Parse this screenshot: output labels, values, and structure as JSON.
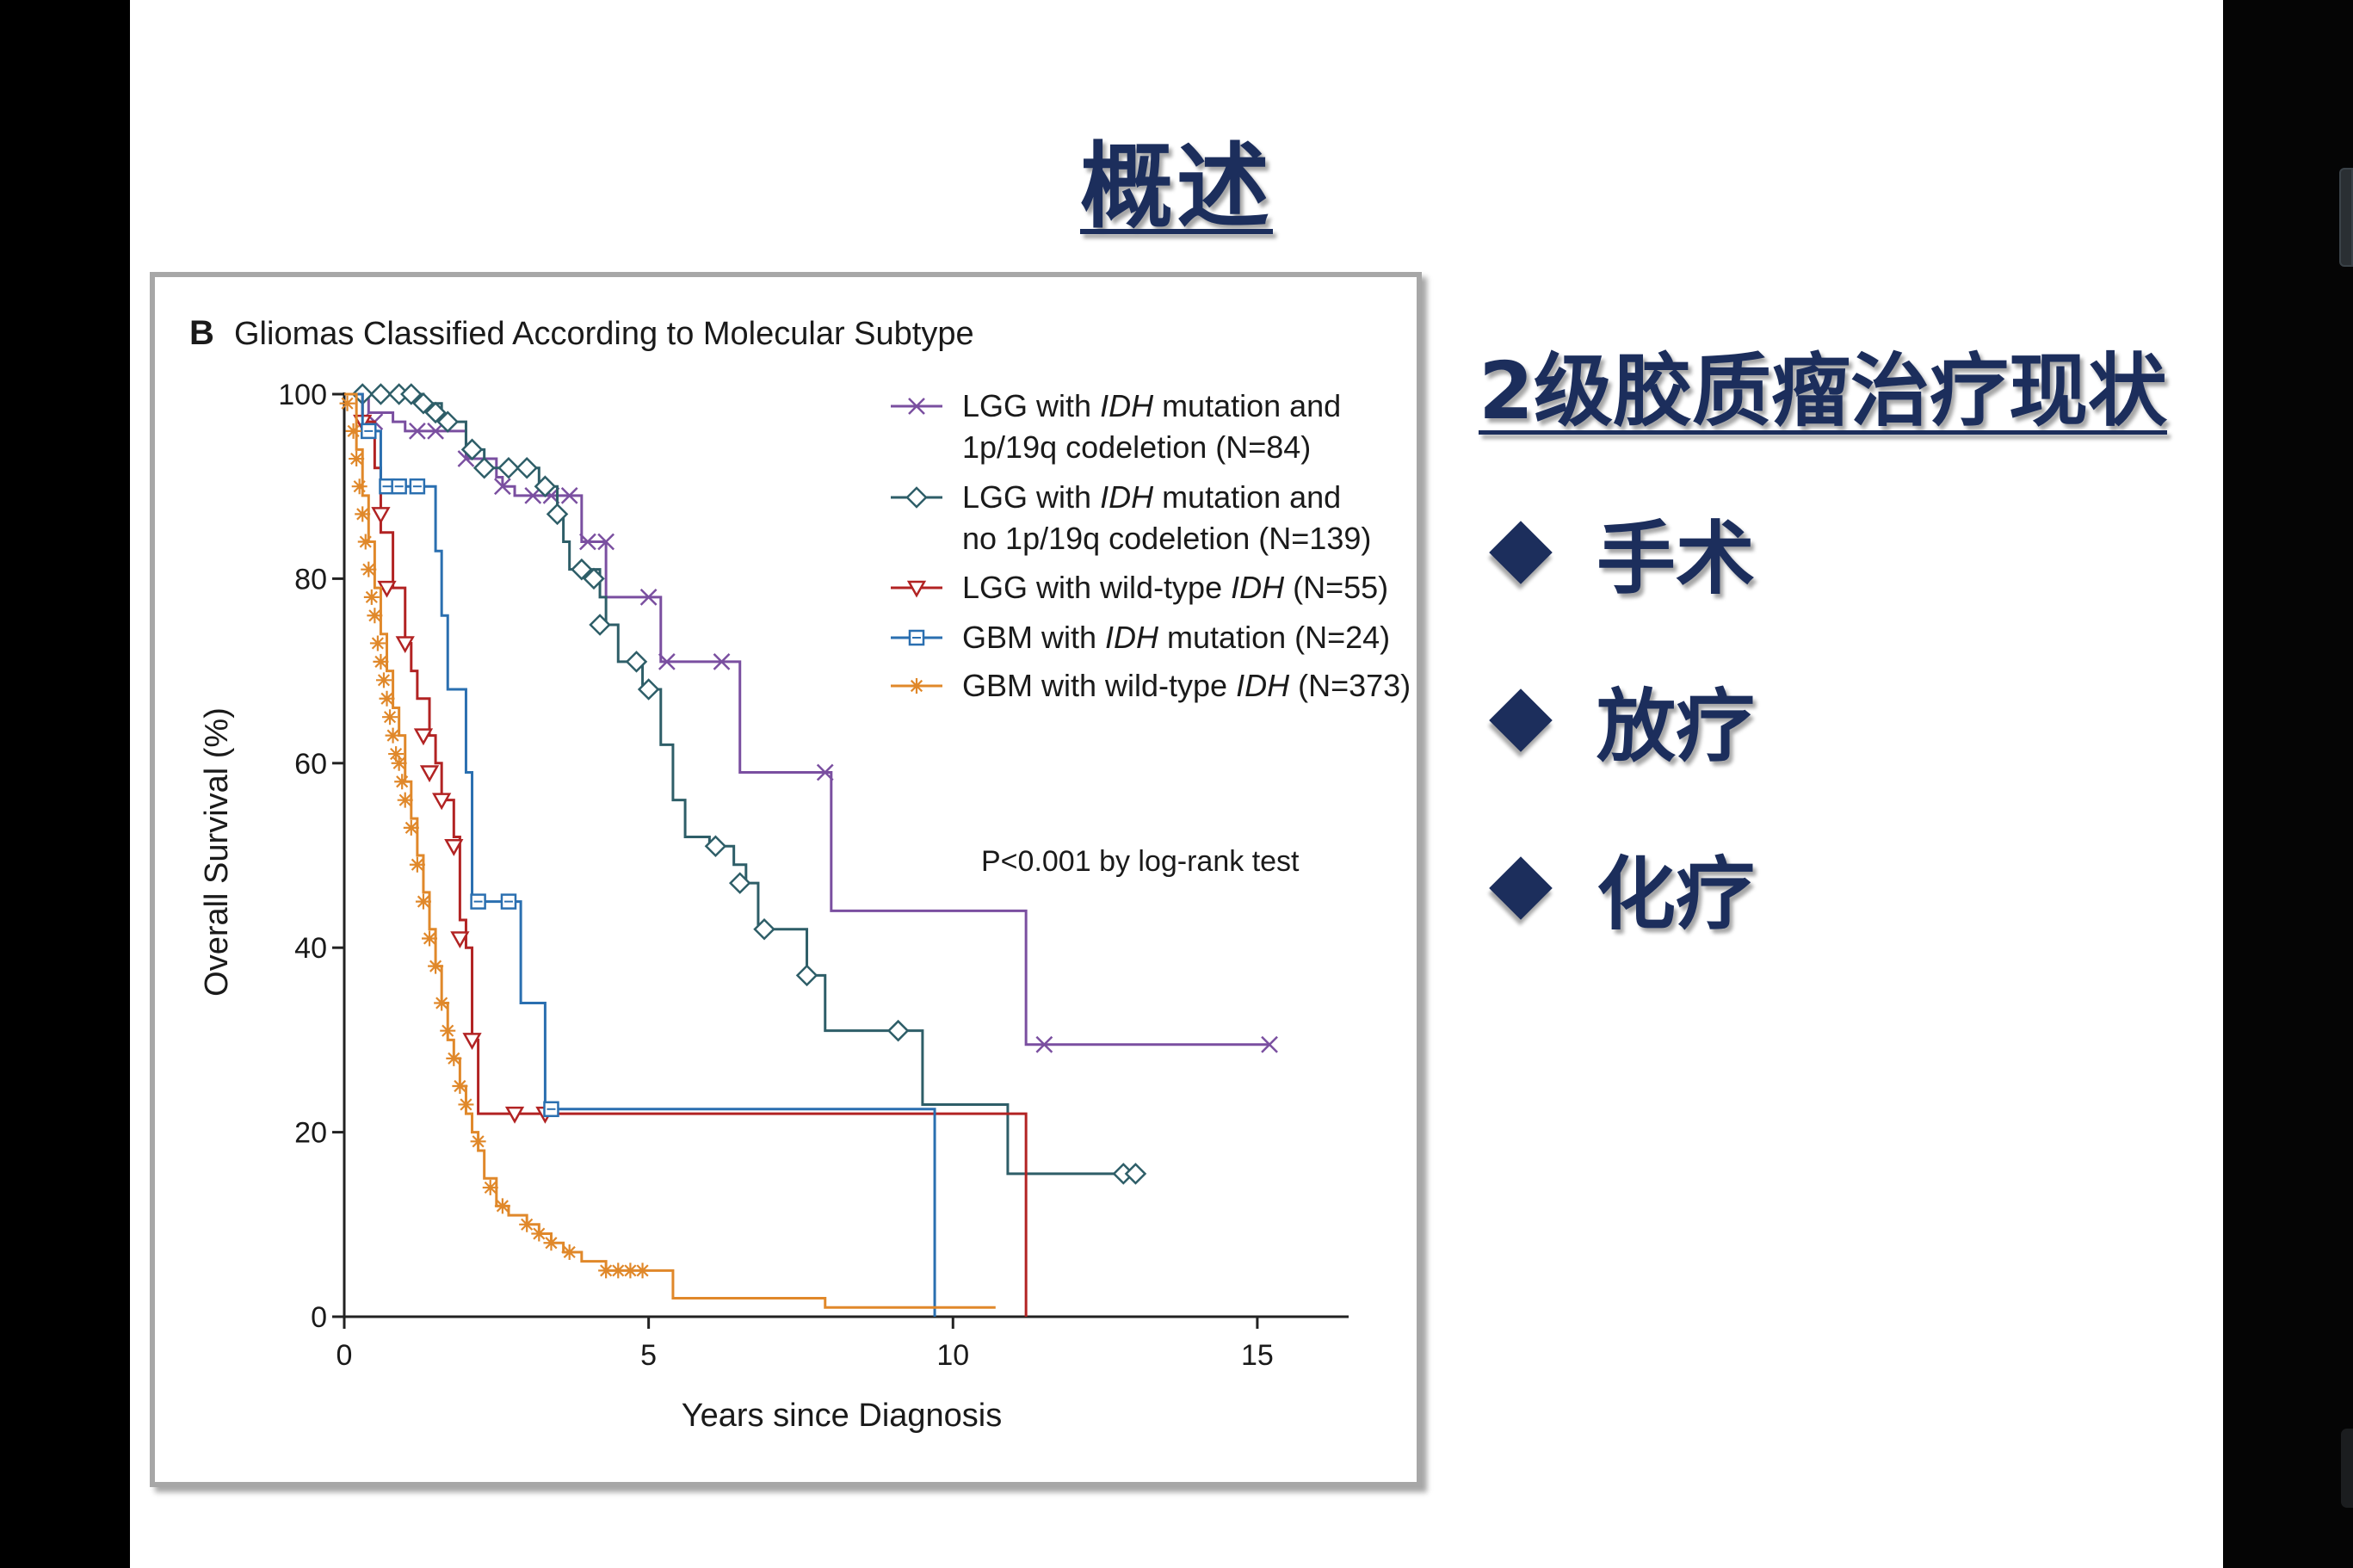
{
  "slide": {
    "title": "概述",
    "section_heading": "2级胶质瘤治疗现状",
    "bullets": [
      {
        "label": "手术",
        "icon": "diamond-bullet-icon"
      },
      {
        "label": "放疗",
        "icon": "diamond-bullet-icon"
      },
      {
        "label": "化疗",
        "icon": "diamond-bullet-icon"
      }
    ],
    "colors": {
      "heading": "#1c2e5c",
      "background": "#ffffff"
    }
  },
  "chart_data": {
    "type": "line",
    "panel_label": "B",
    "title": "Gliomas Classified According to Molecular Subtype",
    "xlabel": "Years since Diagnosis",
    "ylabel": "Overall Survival (%)",
    "xlim": [
      0,
      16.5
    ],
    "ylim": [
      0,
      100
    ],
    "xticks": [
      0,
      5,
      10,
      15
    ],
    "yticks": [
      0,
      20,
      40,
      60,
      80,
      100
    ],
    "annotation": "P<0.001 by log-rank test",
    "grid": false,
    "legend_position": "top-right",
    "series": [
      {
        "legend_parts": [
          "LGG with ",
          "IDH",
          " mutation and",
          "1p/19q codeletion (N=84)"
        ],
        "color": "#7a4fa0",
        "marker": "x",
        "steps": [
          [
            0,
            100
          ],
          [
            0.4,
            98
          ],
          [
            0.8,
            97
          ],
          [
            1.0,
            96
          ],
          [
            1.8,
            96
          ],
          [
            2.0,
            93
          ],
          [
            2.5,
            91
          ],
          [
            2.6,
            90
          ],
          [
            2.8,
            89
          ],
          [
            3.6,
            89
          ],
          [
            3.9,
            84
          ],
          [
            4.3,
            84
          ],
          [
            4.3,
            78
          ],
          [
            5.0,
            78
          ],
          [
            5.2,
            71
          ],
          [
            6.5,
            71
          ],
          [
            6.5,
            59
          ],
          [
            8.0,
            59
          ],
          [
            8.0,
            44
          ],
          [
            11.2,
            44
          ],
          [
            11.2,
            29.5
          ],
          [
            15.2,
            29.5
          ]
        ],
        "markers": [
          [
            0.5,
            97
          ],
          [
            1.2,
            96
          ],
          [
            1.5,
            96
          ],
          [
            2.0,
            93
          ],
          [
            2.6,
            90
          ],
          [
            3.1,
            89
          ],
          [
            3.4,
            89
          ],
          [
            3.7,
            89
          ],
          [
            4.0,
            84
          ],
          [
            4.3,
            84
          ],
          [
            5.0,
            78
          ],
          [
            5.3,
            71
          ],
          [
            6.2,
            71
          ],
          [
            7.9,
            59
          ],
          [
            11.5,
            29.5
          ],
          [
            15.2,
            29.5
          ]
        ]
      },
      {
        "legend_parts": [
          "LGG with ",
          "IDH",
          " mutation and",
          "no 1p/19q codeletion (N=139)"
        ],
        "color": "#2e5e68",
        "marker": "diamond",
        "steps": [
          [
            0,
            100
          ],
          [
            1.3,
            99
          ],
          [
            1.6,
            97
          ],
          [
            2.0,
            94
          ],
          [
            2.3,
            92
          ],
          [
            2.9,
            92
          ],
          [
            3.2,
            90
          ],
          [
            3.5,
            87
          ],
          [
            3.6,
            84
          ],
          [
            3.7,
            81
          ],
          [
            4.2,
            78
          ],
          [
            4.3,
            75
          ],
          [
            4.5,
            71
          ],
          [
            4.9,
            68
          ],
          [
            5.2,
            62
          ],
          [
            5.4,
            56
          ],
          [
            5.6,
            52
          ],
          [
            6.0,
            51
          ],
          [
            6.4,
            49
          ],
          [
            6.6,
            47
          ],
          [
            6.8,
            42
          ],
          [
            7.3,
            42
          ],
          [
            7.6,
            37
          ],
          [
            7.9,
            31
          ],
          [
            9.5,
            31
          ],
          [
            9.5,
            23
          ],
          [
            10.9,
            23
          ],
          [
            10.9,
            15.5
          ],
          [
            13.0,
            15.5
          ]
        ],
        "markers": [
          [
            0.3,
            100
          ],
          [
            0.6,
            100
          ],
          [
            0.9,
            100
          ],
          [
            1.1,
            100
          ],
          [
            1.3,
            99
          ],
          [
            1.5,
            98
          ],
          [
            1.7,
            97
          ],
          [
            2.1,
            94
          ],
          [
            2.3,
            92
          ],
          [
            2.7,
            92
          ],
          [
            3.0,
            92
          ],
          [
            3.3,
            90
          ],
          [
            3.5,
            87
          ],
          [
            3.9,
            81
          ],
          [
            4.1,
            80
          ],
          [
            4.2,
            75
          ],
          [
            4.8,
            71
          ],
          [
            5.0,
            68
          ],
          [
            6.1,
            51
          ],
          [
            6.5,
            47
          ],
          [
            6.9,
            42
          ],
          [
            7.6,
            37
          ],
          [
            9.1,
            31
          ],
          [
            12.8,
            15.5
          ],
          [
            13.0,
            15.5
          ]
        ]
      },
      {
        "legend_parts": [
          "LGG with wild-type ",
          "IDH",
          " (N=55)"
        ],
        "color": "#b22323",
        "marker": "triangle-down",
        "steps": [
          [
            0,
            100
          ],
          [
            0.3,
            97
          ],
          [
            0.5,
            92
          ],
          [
            0.6,
            85
          ],
          [
            0.8,
            79
          ],
          [
            1.0,
            73
          ],
          [
            1.1,
            70
          ],
          [
            1.2,
            67
          ],
          [
            1.4,
            63
          ],
          [
            1.5,
            60
          ],
          [
            1.6,
            56
          ],
          [
            1.8,
            52
          ],
          [
            1.9,
            43
          ],
          [
            2.0,
            40
          ],
          [
            2.1,
            30
          ],
          [
            2.2,
            22
          ],
          [
            11.2,
            22
          ],
          [
            11.2,
            0
          ]
        ],
        "markers": [
          [
            0.3,
            97
          ],
          [
            0.6,
            87
          ],
          [
            0.7,
            79
          ],
          [
            1.0,
            73
          ],
          [
            1.3,
            63
          ],
          [
            1.4,
            59
          ],
          [
            1.6,
            56
          ],
          [
            1.8,
            51
          ],
          [
            1.9,
            41
          ],
          [
            2.1,
            30
          ],
          [
            2.8,
            22
          ],
          [
            3.3,
            22
          ]
        ]
      },
      {
        "legend_parts": [
          "GBM with ",
          "IDH",
          " mutation (N=24)"
        ],
        "color": "#2a6fb0",
        "marker": "square",
        "steps": [
          [
            0,
            100
          ],
          [
            0.3,
            96
          ],
          [
            0.6,
            90
          ],
          [
            1.4,
            90
          ],
          [
            1.5,
            83
          ],
          [
            1.6,
            76
          ],
          [
            1.7,
            68
          ],
          [
            2.0,
            59
          ],
          [
            2.1,
            45
          ],
          [
            2.8,
            45
          ],
          [
            2.9,
            34
          ],
          [
            3.3,
            34
          ],
          [
            3.3,
            22.5
          ],
          [
            9.7,
            22.5
          ],
          [
            9.7,
            0
          ]
        ],
        "markers": [
          [
            0.4,
            96
          ],
          [
            0.7,
            90
          ],
          [
            0.9,
            90
          ],
          [
            1.2,
            90
          ],
          [
            2.2,
            45
          ],
          [
            2.7,
            45
          ],
          [
            3.4,
            22.5
          ]
        ]
      },
      {
        "legend_parts": [
          "GBM with wild-type ",
          "IDH",
          " (N=373)"
        ],
        "color": "#e0882a",
        "marker": "asterisk",
        "steps": [
          [
            0,
            100
          ],
          [
            0.2,
            94
          ],
          [
            0.3,
            89
          ],
          [
            0.4,
            84
          ],
          [
            0.5,
            79
          ],
          [
            0.6,
            74
          ],
          [
            0.7,
            70
          ],
          [
            0.8,
            66
          ],
          [
            0.9,
            63
          ],
          [
            1.0,
            58
          ],
          [
            1.1,
            54
          ],
          [
            1.2,
            50
          ],
          [
            1.3,
            46
          ],
          [
            1.4,
            42
          ],
          [
            1.5,
            38
          ],
          [
            1.6,
            34
          ],
          [
            1.7,
            30
          ],
          [
            1.8,
            28
          ],
          [
            1.9,
            25
          ],
          [
            2.0,
            22
          ],
          [
            2.1,
            20
          ],
          [
            2.2,
            18
          ],
          [
            2.3,
            15
          ],
          [
            2.5,
            12
          ],
          [
            2.7,
            11
          ],
          [
            3.0,
            10
          ],
          [
            3.2,
            9
          ],
          [
            3.4,
            8
          ],
          [
            3.6,
            7
          ],
          [
            3.9,
            6
          ],
          [
            4.3,
            5
          ],
          [
            5.4,
            4
          ],
          [
            5.4,
            2
          ],
          [
            7.9,
            2
          ],
          [
            7.9,
            1
          ],
          [
            10.7,
            1
          ]
        ],
        "markers": [
          [
            0.05,
            99
          ],
          [
            0.15,
            96
          ],
          [
            0.2,
            93
          ],
          [
            0.25,
            90
          ],
          [
            0.3,
            87
          ],
          [
            0.35,
            84
          ],
          [
            0.4,
            81
          ],
          [
            0.45,
            78
          ],
          [
            0.5,
            76
          ],
          [
            0.55,
            73
          ],
          [
            0.6,
            71
          ],
          [
            0.65,
            69
          ],
          [
            0.7,
            67
          ],
          [
            0.75,
            65
          ],
          [
            0.8,
            63
          ],
          [
            0.85,
            61
          ],
          [
            0.9,
            60
          ],
          [
            0.95,
            58
          ],
          [
            1.0,
            56
          ],
          [
            1.1,
            53
          ],
          [
            1.2,
            49
          ],
          [
            1.3,
            45
          ],
          [
            1.4,
            41
          ],
          [
            1.5,
            38
          ],
          [
            1.6,
            34
          ],
          [
            1.7,
            31
          ],
          [
            1.8,
            28
          ],
          [
            1.9,
            25
          ],
          [
            2.0,
            23
          ],
          [
            2.2,
            19
          ],
          [
            2.4,
            14
          ],
          [
            2.6,
            12
          ],
          [
            3.0,
            10
          ],
          [
            3.2,
            9
          ],
          [
            3.4,
            8
          ],
          [
            3.7,
            7
          ],
          [
            4.3,
            5
          ],
          [
            4.5,
            5
          ],
          [
            4.7,
            5
          ],
          [
            4.9,
            5
          ]
        ]
      }
    ]
  }
}
